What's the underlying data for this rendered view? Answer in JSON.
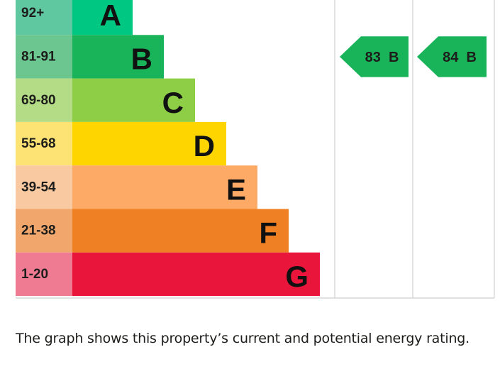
{
  "chart_data": {
    "type": "bar",
    "bands": [
      {
        "letter": "A",
        "range": "92+",
        "min": 92,
        "max": 100,
        "color": "#00c781",
        "tint": "#5fc8a0"
      },
      {
        "letter": "B",
        "range": "81-91",
        "min": 81,
        "max": 91,
        "color": "#19b459",
        "tint": "#6bc68f"
      },
      {
        "letter": "C",
        "range": "69-80",
        "min": 69,
        "max": 80,
        "color": "#8dce46",
        "tint": "#b4dc86"
      },
      {
        "letter": "D",
        "range": "55-68",
        "min": 55,
        "max": 68,
        "color": "#ffd500",
        "tint": "#fce373"
      },
      {
        "letter": "E",
        "range": "39-54",
        "min": 39,
        "max": 54,
        "color": "#fcaa65",
        "tint": "#f9c9a2"
      },
      {
        "letter": "F",
        "range": "21-38",
        "min": 21,
        "max": 38,
        "color": "#ef8023",
        "tint": "#f1a76c"
      },
      {
        "letter": "G",
        "range": "1-20",
        "min": 1,
        "max": 20,
        "color": "#e9153b",
        "tint": "#ee7b92"
      }
    ],
    "current": {
      "score": 83,
      "band": "B",
      "label": "83  B"
    },
    "potential": {
      "score": 84,
      "band": "B",
      "label": "84  B"
    }
  },
  "caption": "The graph shows this property’s current and potential energy rating."
}
